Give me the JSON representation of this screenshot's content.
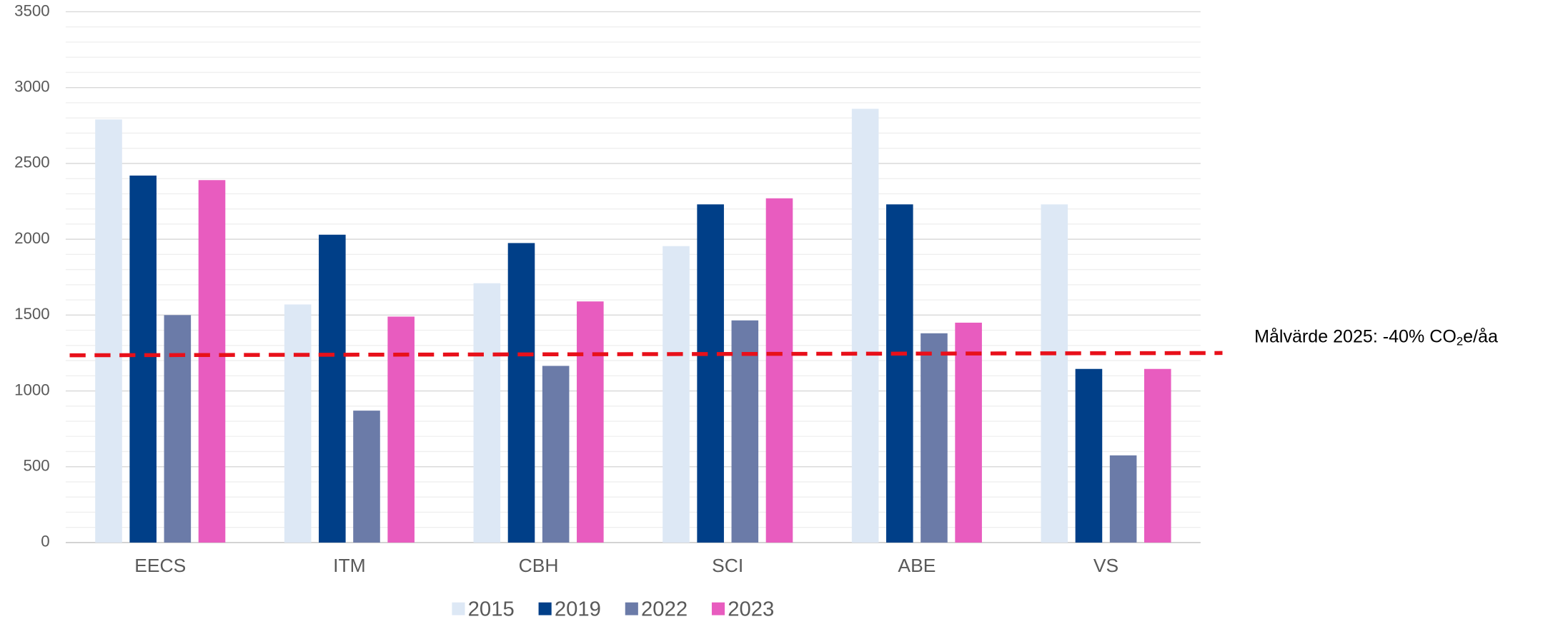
{
  "chart_data": {
    "type": "bar",
    "categories": [
      "EECS",
      "ITM",
      "CBH",
      "SCI",
      "ABE",
      "VS"
    ],
    "series": [
      {
        "name": "2015",
        "color": "#dde8f5",
        "values": [
          2790,
          1570,
          1710,
          1955,
          2860,
          2230
        ]
      },
      {
        "name": "2019",
        "color": "#003f88",
        "values": [
          2420,
          2030,
          1975,
          2230,
          2230,
          1145
        ]
      },
      {
        "name": "2022",
        "color": "#6b7ba8",
        "values": [
          1500,
          870,
          1165,
          1465,
          1380,
          575
        ]
      },
      {
        "name": "2023",
        "color": "#e85cbf",
        "values": [
          2390,
          1490,
          1590,
          2270,
          1450,
          1145
        ]
      }
    ],
    "ylim": [
      0,
      3500
    ],
    "yticks": [
      0,
      500,
      1000,
      1500,
      2000,
      2500,
      3000,
      3500
    ],
    "grid": true,
    "minor_grid": 100,
    "legend": "bottom",
    "target_line": {
      "values": [
        1235,
        1250
      ],
      "color": "#e8101a"
    },
    "annotation": [
      "Målvärde 2025: -40% CO",
      "2",
      "e/åa"
    ]
  }
}
